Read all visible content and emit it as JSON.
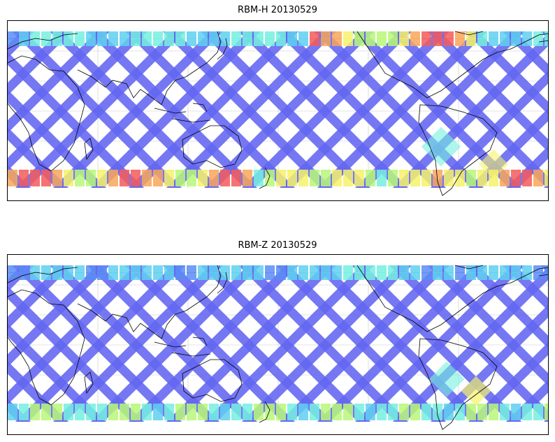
{
  "panels": [
    {
      "title": "RBM-H 20130529",
      "id": "rbm-h"
    },
    {
      "title": "RBM-Z 20130529",
      "id": "rbm-z"
    }
  ],
  "colors": {
    "low": "#6366f1",
    "low2": "#5a8cf5",
    "mid": "#5fd0f0",
    "cyan": "#74f0e0",
    "green": "#b8f878",
    "yellow": "#f6f26a",
    "orange": "#f8a65a",
    "high": "#f45a5a",
    "coast": "#000000",
    "grid": "#c8c8c8"
  },
  "map": {
    "projection": "equirectangular",
    "grid_lines": true
  }
}
